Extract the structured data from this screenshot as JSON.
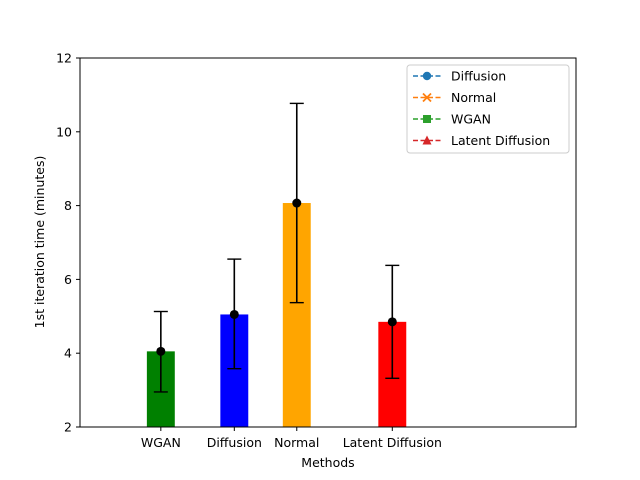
{
  "chart_data": {
    "type": "bar",
    "title": "",
    "xlabel": "Methods",
    "ylabel": "1st iteration time (minutes)",
    "ylim": [
      2,
      12
    ],
    "yticks": [
      2,
      4,
      6,
      8,
      10,
      12
    ],
    "grid": false,
    "legend_placement": "top-right",
    "bars": [
      {
        "category": "WGAN",
        "x": 1.0,
        "value": 4.05,
        "err_low": 2.95,
        "err_high": 5.13,
        "color": "#008000"
      },
      {
        "category": "Diffusion",
        "x": 2.0,
        "value": 5.05,
        "err_low": 3.58,
        "err_high": 6.55,
        "color": "#0000ff"
      },
      {
        "category": "Normal",
        "x": 2.85,
        "value": 8.07,
        "err_low": 5.37,
        "err_high": 10.77,
        "color": "#ffa500"
      },
      {
        "category": "Latent Diffusion",
        "x": 4.15,
        "value": 4.85,
        "err_low": 3.32,
        "err_high": 6.38,
        "color": "#ff0000"
      }
    ],
    "xlim": [
      -0.1,
      6.65
    ],
    "bar_width": 0.38,
    "legend": [
      {
        "name": "Diffusion",
        "marker": "circle",
        "color": "#1f77b4"
      },
      {
        "name": "Normal",
        "marker": "x",
        "color": "#ff7f0e"
      },
      {
        "name": "WGAN",
        "marker": "square",
        "color": "#2ca02c"
      },
      {
        "name": "Latent Diffusion",
        "marker": "triangle",
        "color": "#d62728"
      }
    ]
  }
}
